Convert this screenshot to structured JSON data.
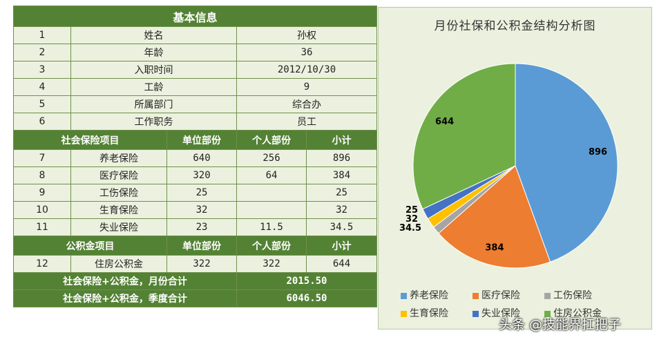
{
  "table": {
    "basic_header": "基本信息",
    "basic_rows": [
      {
        "n": "1",
        "label": "姓名",
        "value": "孙权"
      },
      {
        "n": "2",
        "label": "年龄",
        "value": "36"
      },
      {
        "n": "3",
        "label": "入职时间",
        "value": "2012/10/30"
      },
      {
        "n": "4",
        "label": "工龄",
        "value": "9"
      },
      {
        "n": "5",
        "label": "所属部门",
        "value": "综合办"
      },
      {
        "n": "6",
        "label": "工作职务",
        "value": "员工"
      }
    ],
    "ins_header": [
      "社会保险项目",
      "单位部份",
      "个人部份",
      "小计"
    ],
    "ins_rows": [
      {
        "n": "7",
        "item": "养老保险",
        "unit": "640",
        "personal": "256",
        "total": "896"
      },
      {
        "n": "8",
        "item": "医疗保险",
        "unit": "320",
        "personal": "64",
        "total": "384"
      },
      {
        "n": "9",
        "item": "工伤保险",
        "unit": "25",
        "personal": "",
        "total": "25"
      },
      {
        "n": "10",
        "item": "生育保险",
        "unit": "32",
        "personal": "",
        "total": "32"
      },
      {
        "n": "11",
        "item": "失业保险",
        "unit": "23",
        "personal": "11.5",
        "total": "34.5"
      }
    ],
    "fund_header": [
      "公积金项目",
      "单位部份",
      "个人部份",
      "小计"
    ],
    "fund_rows": [
      {
        "n": "12",
        "item": "住房公积金",
        "unit": "322",
        "personal": "322",
        "total": "644"
      }
    ],
    "monthly_label": "社会保险+公积金，月份合计",
    "monthly_value": "2015.50",
    "quarter_label": "社会保险+公积金，季度合计",
    "quarter_value": "6046.50"
  },
  "chart_data": {
    "type": "pie",
    "title": "月份社保和公积金结构分析图",
    "categories": [
      "养老保险",
      "医疗保险",
      "工伤保险",
      "生育保险",
      "失业保险",
      "住房公积金"
    ],
    "values": [
      896,
      384,
      25,
      32,
      34.5,
      644
    ],
    "data_labels": [
      "896",
      "384",
      "25",
      "32",
      "34.5",
      "644"
    ],
    "colors": [
      "#5b9bd5",
      "#ed7d31",
      "#a5a5a5",
      "#ffc000",
      "#4472c4",
      "#70ad47"
    ],
    "legend_position": "bottom"
  },
  "watermark": "头条 @技能界扛把子"
}
